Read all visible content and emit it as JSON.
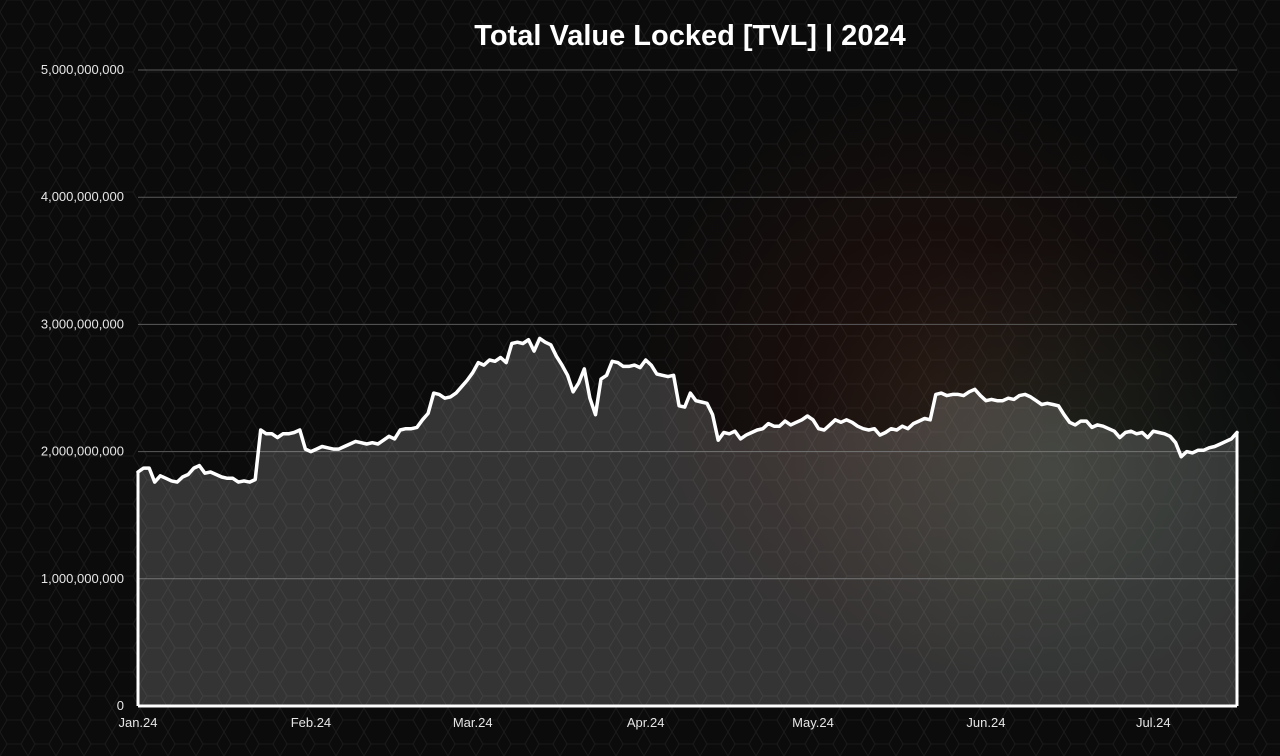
{
  "colors": {
    "background": "#0b0b0b",
    "line": "#ffffff",
    "area_fill": "#ffffff",
    "gridline": "#5a5a5a",
    "text": "#e6e6e6"
  },
  "chart_data": {
    "type": "area",
    "title": "Total Value Locked [TVL] | 2024",
    "xlabel": "",
    "ylabel": "",
    "grid": true,
    "legend": "none",
    "ylim": [
      0,
      5000000000
    ],
    "y_ticks": [
      0,
      1000000000,
      2000000000,
      3000000000,
      4000000000,
      5000000000
    ],
    "y_tick_labels": [
      "0",
      "1,000,000,000",
      "2,000,000,000",
      "3,000,000,000",
      "4,000,000,000",
      "5,000,000,000"
    ],
    "x_range": [
      "2024-01-01",
      "2024-07-16"
    ],
    "x_ticks": [
      "2024-01-01",
      "2024-02-01",
      "2024-03-01",
      "2024-04-01",
      "2024-05-01",
      "2024-06-01",
      "2024-07-01"
    ],
    "x_tick_labels": [
      "Jan.24",
      "Feb.24",
      "Mar.24",
      "Apr.24",
      "May.24",
      "Jun.24",
      "Jul.24"
    ],
    "series": [
      {
        "x": [
          "2024-01-01",
          "2024-01-02",
          "2024-01-03",
          "2024-01-04",
          "2024-01-05",
          "2024-01-06",
          "2024-01-07",
          "2024-01-08",
          "2024-01-09",
          "2024-01-10",
          "2024-01-11",
          "2024-01-12",
          "2024-01-13",
          "2024-01-14",
          "2024-01-15",
          "2024-01-16",
          "2024-01-17",
          "2024-01-18",
          "2024-01-19",
          "2024-01-20",
          "2024-01-21",
          "2024-01-22",
          "2024-01-23",
          "2024-01-24",
          "2024-01-25",
          "2024-01-26",
          "2024-01-27",
          "2024-01-28",
          "2024-01-29",
          "2024-01-30",
          "2024-01-31",
          "2024-02-01",
          "2024-02-02",
          "2024-02-03",
          "2024-02-04",
          "2024-02-05",
          "2024-02-06",
          "2024-02-07",
          "2024-02-08",
          "2024-02-09",
          "2024-02-10",
          "2024-02-11",
          "2024-02-12",
          "2024-02-13",
          "2024-02-14",
          "2024-02-15",
          "2024-02-16",
          "2024-02-17",
          "2024-02-18",
          "2024-02-19",
          "2024-02-20",
          "2024-02-21",
          "2024-02-22",
          "2024-02-23",
          "2024-02-24",
          "2024-02-25",
          "2024-02-26",
          "2024-02-27",
          "2024-02-28",
          "2024-02-29",
          "2024-03-01",
          "2024-03-02",
          "2024-03-03",
          "2024-03-04",
          "2024-03-05",
          "2024-03-06",
          "2024-03-07",
          "2024-03-08",
          "2024-03-09",
          "2024-03-10",
          "2024-03-11",
          "2024-03-12",
          "2024-03-13",
          "2024-03-14",
          "2024-03-15",
          "2024-03-16",
          "2024-03-17",
          "2024-03-18",
          "2024-03-19",
          "2024-03-20",
          "2024-03-21",
          "2024-03-22",
          "2024-03-23",
          "2024-03-24",
          "2024-03-25",
          "2024-03-26",
          "2024-03-27",
          "2024-03-28",
          "2024-03-29",
          "2024-03-30",
          "2024-03-31",
          "2024-04-01",
          "2024-04-02",
          "2024-04-03",
          "2024-04-04",
          "2024-04-05",
          "2024-04-06",
          "2024-04-07",
          "2024-04-08",
          "2024-04-09",
          "2024-04-10",
          "2024-04-11",
          "2024-04-12",
          "2024-04-13",
          "2024-04-14",
          "2024-04-15",
          "2024-04-16",
          "2024-04-17",
          "2024-04-18",
          "2024-04-19",
          "2024-04-20",
          "2024-04-21",
          "2024-04-22",
          "2024-04-23",
          "2024-04-24",
          "2024-04-25",
          "2024-04-26",
          "2024-04-27",
          "2024-04-28",
          "2024-04-29",
          "2024-04-30",
          "2024-05-01",
          "2024-05-02",
          "2024-05-03",
          "2024-05-04",
          "2024-05-05",
          "2024-05-06",
          "2024-05-07",
          "2024-05-08",
          "2024-05-09",
          "2024-05-10",
          "2024-05-11",
          "2024-05-12",
          "2024-05-13",
          "2024-05-14",
          "2024-05-15",
          "2024-05-16",
          "2024-05-17",
          "2024-05-18",
          "2024-05-19",
          "2024-05-20",
          "2024-05-21",
          "2024-05-22",
          "2024-05-23",
          "2024-05-24",
          "2024-05-25",
          "2024-05-26",
          "2024-05-27",
          "2024-05-28",
          "2024-05-29",
          "2024-05-30",
          "2024-05-31",
          "2024-06-01",
          "2024-06-02",
          "2024-06-03",
          "2024-06-04",
          "2024-06-05",
          "2024-06-06",
          "2024-06-07",
          "2024-06-08",
          "2024-06-09",
          "2024-06-10",
          "2024-06-11",
          "2024-06-12",
          "2024-06-13",
          "2024-06-14",
          "2024-06-15",
          "2024-06-16",
          "2024-06-17",
          "2024-06-18",
          "2024-06-19",
          "2024-06-20",
          "2024-06-21",
          "2024-06-22",
          "2024-06-23",
          "2024-06-24",
          "2024-06-25",
          "2024-06-26",
          "2024-06-27",
          "2024-06-28",
          "2024-06-29",
          "2024-06-30",
          "2024-07-01",
          "2024-07-02",
          "2024-07-03",
          "2024-07-04",
          "2024-07-05",
          "2024-07-06",
          "2024-07-07",
          "2024-07-08",
          "2024-07-09",
          "2024-07-10",
          "2024-07-11",
          "2024-07-12",
          "2024-07-13",
          "2024-07-14",
          "2024-07-15",
          "2024-07-16"
        ],
        "y": [
          1840000000,
          1870000000,
          1870000000,
          1760000000,
          1810000000,
          1790000000,
          1770000000,
          1760000000,
          1800000000,
          1820000000,
          1870000000,
          1890000000,
          1830000000,
          1840000000,
          1820000000,
          1800000000,
          1790000000,
          1790000000,
          1760000000,
          1770000000,
          1760000000,
          1780000000,
          2170000000,
          2140000000,
          2140000000,
          2110000000,
          2140000000,
          2140000000,
          2150000000,
          2170000000,
          2020000000,
          2000000000,
          2020000000,
          2040000000,
          2030000000,
          2020000000,
          2020000000,
          2040000000,
          2060000000,
          2080000000,
          2070000000,
          2060000000,
          2070000000,
          2060000000,
          2090000000,
          2120000000,
          2100000000,
          2170000000,
          2180000000,
          2180000000,
          2190000000,
          2250000000,
          2300000000,
          2460000000,
          2450000000,
          2420000000,
          2430000000,
          2460000000,
          2510000000,
          2560000000,
          2620000000,
          2700000000,
          2680000000,
          2720000000,
          2710000000,
          2740000000,
          2700000000,
          2850000000,
          2860000000,
          2850000000,
          2880000000,
          2790000000,
          2890000000,
          2860000000,
          2840000000,
          2750000000,
          2680000000,
          2600000000,
          2470000000,
          2540000000,
          2650000000,
          2420000000,
          2290000000,
          2570000000,
          2600000000,
          2710000000,
          2700000000,
          2670000000,
          2670000000,
          2680000000,
          2660000000,
          2720000000,
          2680000000,
          2610000000,
          2600000000,
          2590000000,
          2600000000,
          2360000000,
          2350000000,
          2460000000,
          2400000000,
          2390000000,
          2380000000,
          2290000000,
          2090000000,
          2150000000,
          2140000000,
          2160000000,
          2100000000,
          2130000000,
          2150000000,
          2170000000,
          2180000000,
          2220000000,
          2200000000,
          2200000000,
          2240000000,
          2210000000,
          2230000000,
          2250000000,
          2280000000,
          2250000000,
          2180000000,
          2170000000,
          2210000000,
          2250000000,
          2230000000,
          2250000000,
          2230000000,
          2200000000,
          2180000000,
          2170000000,
          2180000000,
          2130000000,
          2150000000,
          2180000000,
          2170000000,
          2200000000,
          2180000000,
          2220000000,
          2240000000,
          2260000000,
          2250000000,
          2450000000,
          2460000000,
          2440000000,
          2450000000,
          2450000000,
          2440000000,
          2470000000,
          2490000000,
          2440000000,
          2400000000,
          2410000000,
          2400000000,
          2400000000,
          2420000000,
          2410000000,
          2440000000,
          2450000000,
          2430000000,
          2400000000,
          2370000000,
          2380000000,
          2370000000,
          2360000000,
          2290000000,
          2230000000,
          2210000000,
          2240000000,
          2240000000,
          2190000000,
          2210000000,
          2200000000,
          2180000000,
          2160000000,
          2110000000,
          2150000000,
          2160000000,
          2140000000,
          2150000000,
          2110000000,
          2160000000,
          2150000000,
          2140000000,
          2120000000,
          2070000000,
          1960000000,
          2000000000,
          1990000000,
          2010000000,
          2010000000,
          2030000000,
          2040000000,
          2060000000,
          2080000000,
          2100000000,
          2150000000
        ]
      }
    ]
  }
}
